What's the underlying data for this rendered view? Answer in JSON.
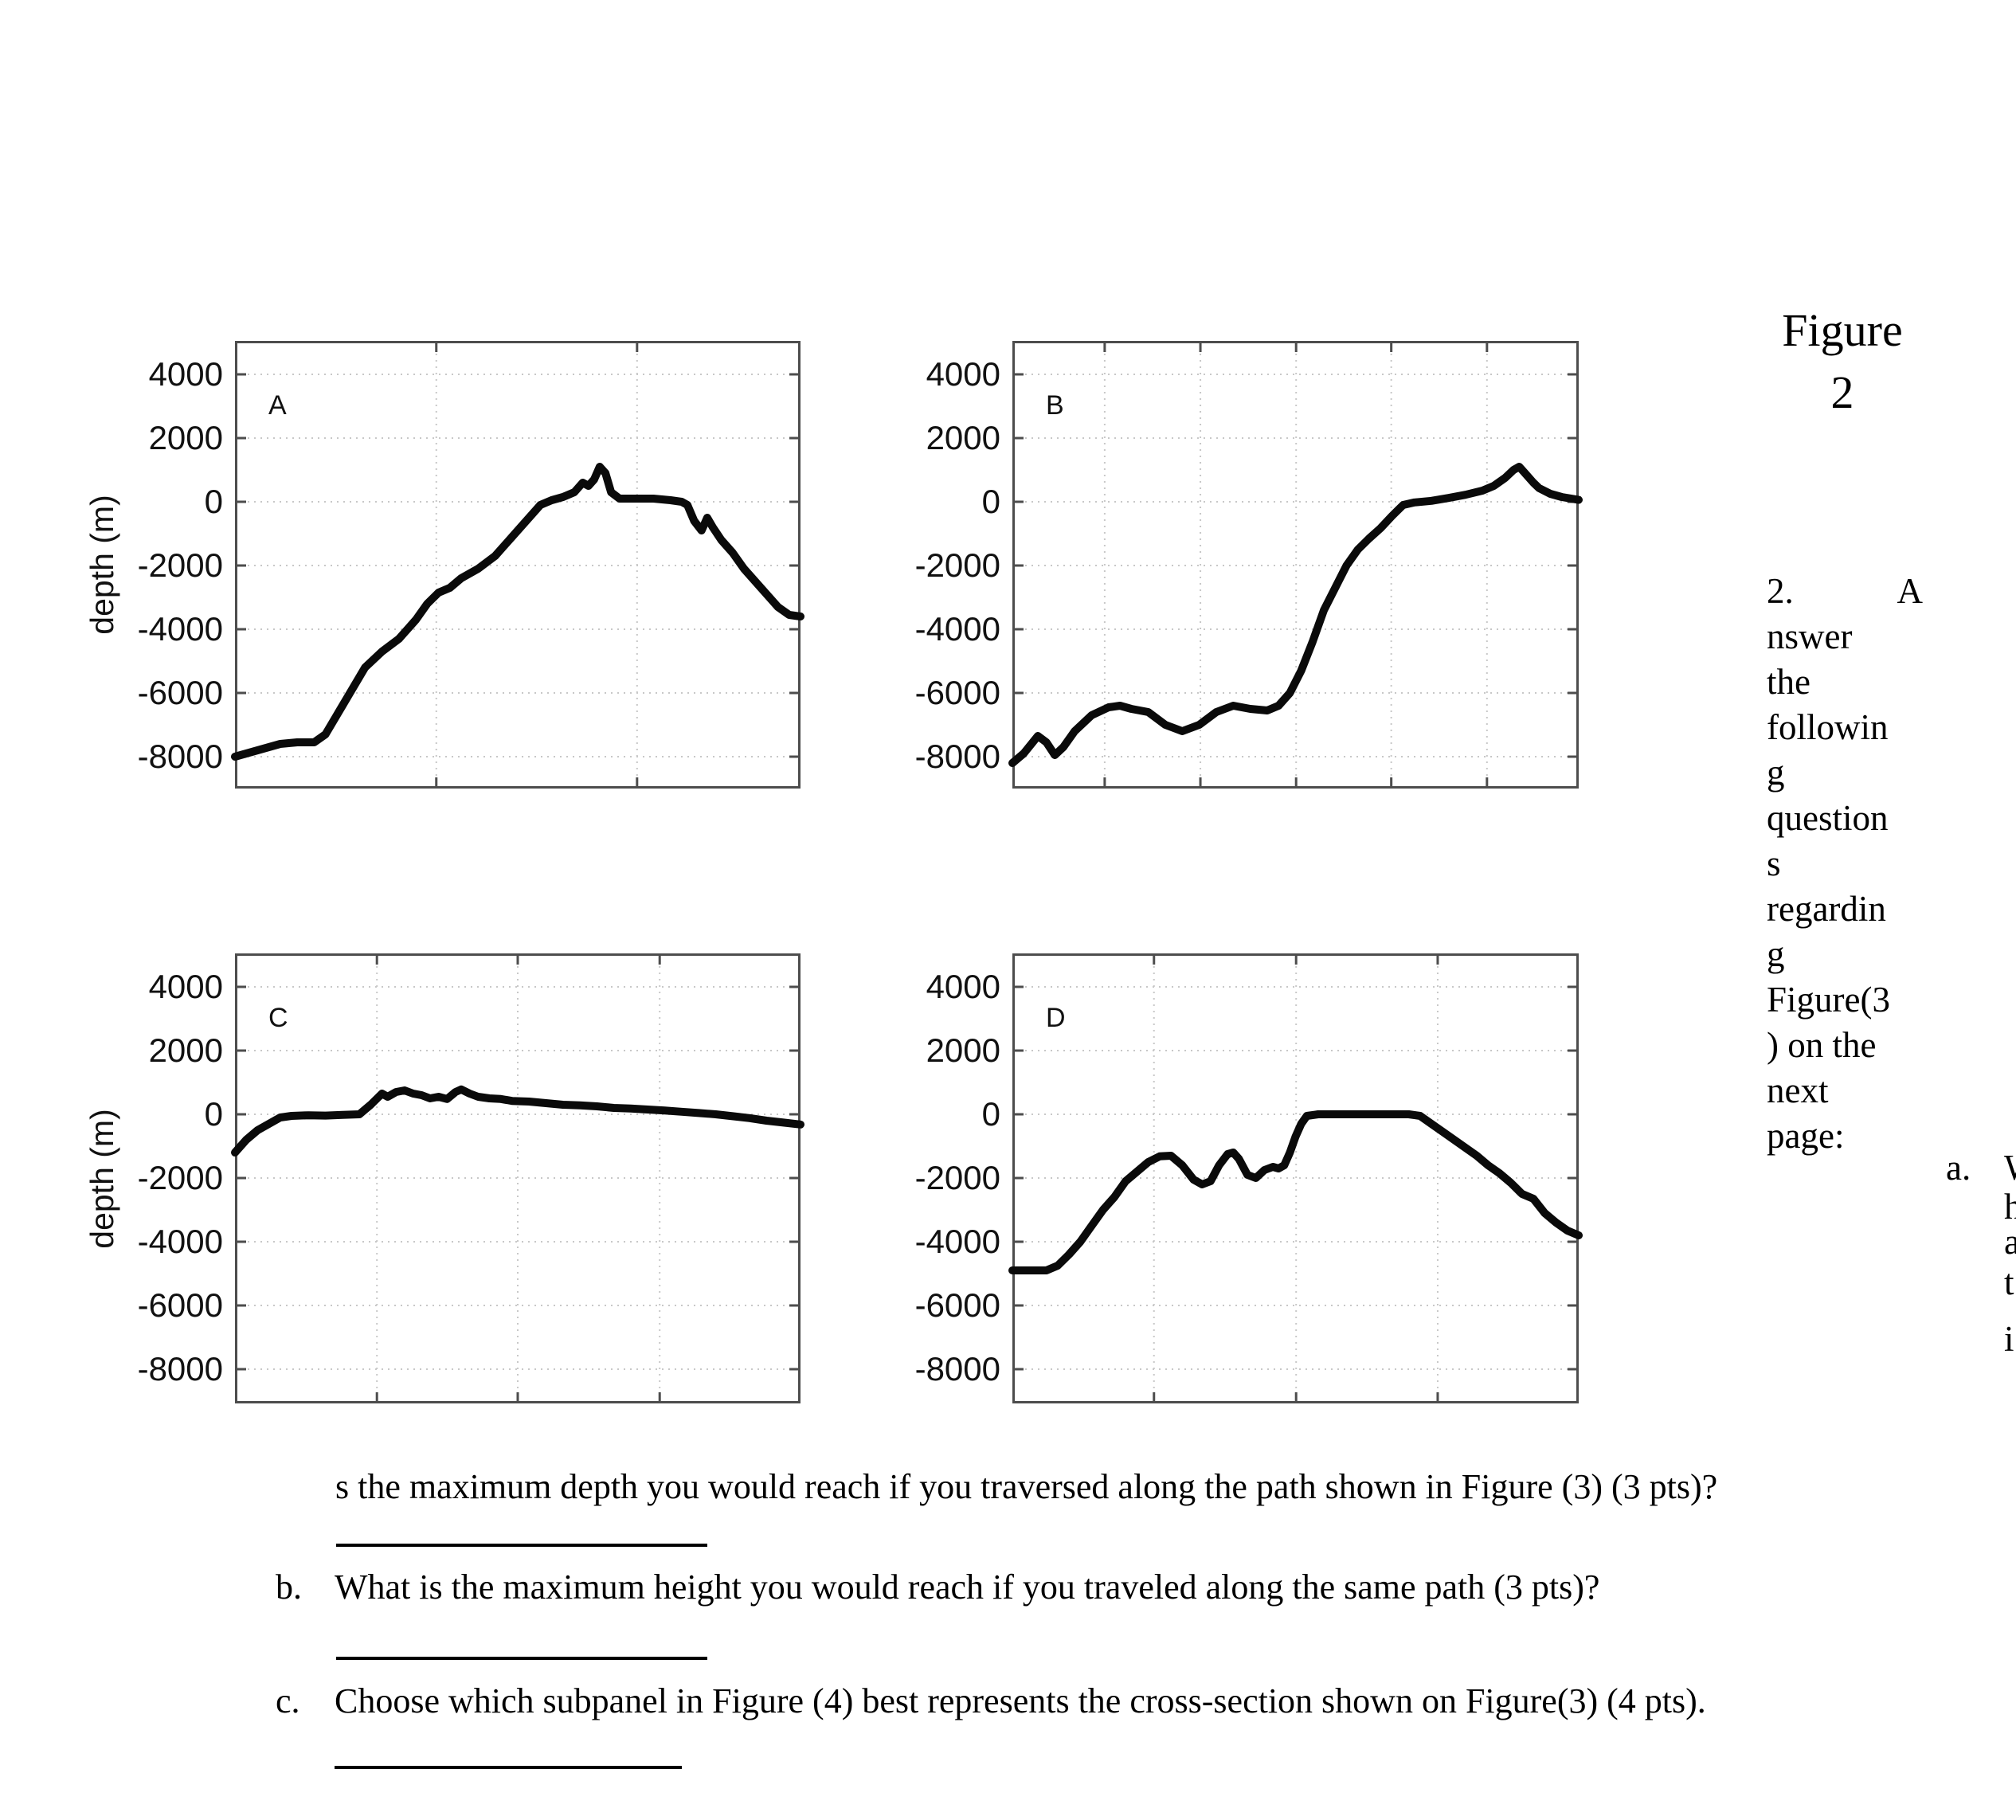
{
  "figure_caption": {
    "line1": "Figure",
    "line2": "2"
  },
  "note": {
    "number": "2.",
    "first_char": "A",
    "wrapped_lines": [
      "nswer",
      "the",
      "followin",
      "g",
      "question",
      "s",
      "regardin",
      "g",
      "Figure(3",
      ") on the",
      "next",
      "page:"
    ]
  },
  "question_a_marker": "a.",
  "clipped_fragments": [
    "W",
    "h",
    "a",
    "t",
    "i"
  ],
  "questions": {
    "a_continuation": "s the maximum depth you would reach if you traversed along the path shown in Figure (3) (3 pts)?",
    "b_marker": "b.",
    "b": "What is the maximum height you would reach if you traveled along the same path (3 pts)?",
    "c_marker": "c.",
    "c": "Choose which subpanel in Figure (4) best represents the cross-section shown on Figure(3) (4 pts)."
  },
  "colors": {
    "curve": "#0a0a0a",
    "axis": "#4d4d4d",
    "grid": "#c8c8c8",
    "text": "#000000"
  },
  "chart_data": [
    {
      "type": "line",
      "panel": "A",
      "label": "A",
      "ylabel": "depth (m)",
      "ylim": [
        -9000,
        5050
      ],
      "yticks": [
        4000,
        2000,
        0,
        -2000,
        -4000,
        -6000,
        -8000
      ],
      "x_gridlines": [
        0.356,
        0.711
      ],
      "x": [
        0,
        0.04,
        0.08,
        0.11,
        0.14,
        0.16,
        0.18,
        0.2,
        0.23,
        0.26,
        0.29,
        0.32,
        0.34,
        0.36,
        0.38,
        0.4,
        0.43,
        0.46,
        0.49,
        0.52,
        0.54,
        0.56,
        0.58,
        0.6,
        0.615,
        0.625,
        0.635,
        0.645,
        0.655,
        0.665,
        0.68,
        0.71,
        0.74,
        0.77,
        0.79,
        0.8,
        0.812,
        0.825,
        0.835,
        0.845,
        0.86,
        0.88,
        0.9,
        0.93,
        0.96,
        0.98,
        1.0
      ],
      "y": [
        -8000,
        -7800,
        -7600,
        -7550,
        -7550,
        -7300,
        -6700,
        -6100,
        -5200,
        -4700,
        -4300,
        -3700,
        -3200,
        -2850,
        -2700,
        -2400,
        -2100,
        -1700,
        -1100,
        -500,
        -100,
        50,
        150,
        300,
        600,
        500,
        700,
        1100,
        900,
        300,
        100,
        100,
        100,
        50,
        0,
        -100,
        -600,
        -900,
        -500,
        -800,
        -1200,
        -1600,
        -2100,
        -2700,
        -3300,
        -3550,
        -3600
      ]
    },
    {
      "type": "line",
      "panel": "B",
      "label": "B",
      "ylabel": "",
      "ylim": [
        -9000,
        5050
      ],
      "yticks": [
        4000,
        2000,
        0,
        -2000,
        -4000,
        -6000,
        -8000
      ],
      "x_gridlines": [
        0.163,
        0.332,
        0.501,
        0.669,
        0.838
      ],
      "x": [
        0,
        0.02,
        0.045,
        0.06,
        0.075,
        0.09,
        0.11,
        0.14,
        0.17,
        0.19,
        0.21,
        0.24,
        0.27,
        0.3,
        0.33,
        0.36,
        0.39,
        0.42,
        0.45,
        0.47,
        0.49,
        0.51,
        0.53,
        0.55,
        0.57,
        0.59,
        0.61,
        0.63,
        0.65,
        0.67,
        0.69,
        0.71,
        0.74,
        0.77,
        0.8,
        0.83,
        0.85,
        0.87,
        0.885,
        0.895,
        0.905,
        0.92,
        0.93,
        0.95,
        0.97,
        1.0
      ],
      "y": [
        -8200,
        -7900,
        -7350,
        -7550,
        -7950,
        -7700,
        -7200,
        -6700,
        -6450,
        -6400,
        -6500,
        -6600,
        -7000,
        -7200,
        -7000,
        -6600,
        -6400,
        -6500,
        -6550,
        -6400,
        -6000,
        -5300,
        -4400,
        -3400,
        -2700,
        -2000,
        -1500,
        -1150,
        -830,
        -450,
        -100,
        -20,
        30,
        120,
        220,
        350,
        500,
        750,
        1000,
        1100,
        900,
        600,
        430,
        250,
        150,
        60
      ]
    },
    {
      "type": "line",
      "panel": "C",
      "label": "C",
      "ylabel": "depth (m)",
      "ylim": [
        -9050,
        5050
      ],
      "yticks": [
        4000,
        2000,
        0,
        -2000,
        -4000,
        -6000,
        -8000
      ],
      "x_gridlines": [
        0.251,
        0.5,
        0.751
      ],
      "x": [
        0,
        0.02,
        0.04,
        0.06,
        0.08,
        0.1,
        0.13,
        0.16,
        0.19,
        0.22,
        0.24,
        0.26,
        0.27,
        0.285,
        0.3,
        0.315,
        0.33,
        0.345,
        0.36,
        0.375,
        0.39,
        0.4,
        0.415,
        0.43,
        0.45,
        0.47,
        0.49,
        0.52,
        0.55,
        0.58,
        0.61,
        0.64,
        0.67,
        0.7,
        0.73,
        0.76,
        0.79,
        0.82,
        0.85,
        0.88,
        0.91,
        0.94,
        0.97,
        1.0
      ],
      "y": [
        -1200,
        -800,
        -500,
        -300,
        -100,
        -50,
        -30,
        -40,
        -20,
        0,
        300,
        650,
        550,
        700,
        750,
        650,
        600,
        500,
        550,
        480,
        700,
        780,
        650,
        550,
        500,
        480,
        420,
        400,
        350,
        300,
        280,
        250,
        200,
        180,
        150,
        120,
        80,
        40,
        0,
        -60,
        -120,
        -200,
        -260,
        -320
      ]
    },
    {
      "type": "line",
      "panel": "D",
      "label": "D",
      "ylabel": "",
      "ylim": [
        -9050,
        5050
      ],
      "yticks": [
        4000,
        2000,
        0,
        -2000,
        -4000,
        -6000,
        -8000
      ],
      "x_gridlines": [
        0.25,
        0.501,
        0.751
      ],
      "x": [
        0,
        0.03,
        0.06,
        0.08,
        0.1,
        0.12,
        0.14,
        0.16,
        0.18,
        0.2,
        0.22,
        0.24,
        0.26,
        0.28,
        0.3,
        0.32,
        0.335,
        0.35,
        0.365,
        0.38,
        0.39,
        0.4,
        0.415,
        0.43,
        0.445,
        0.46,
        0.47,
        0.48,
        0.49,
        0.5,
        0.51,
        0.52,
        0.54,
        0.6,
        0.66,
        0.7,
        0.72,
        0.74,
        0.76,
        0.78,
        0.8,
        0.82,
        0.84,
        0.86,
        0.88,
        0.9,
        0.92,
        0.94,
        0.96,
        0.98,
        1.0
      ],
      "y": [
        -4900,
        -4900,
        -4900,
        -4750,
        -4400,
        -4000,
        -3500,
        -3000,
        -2600,
        -2100,
        -1800,
        -1500,
        -1320,
        -1300,
        -1600,
        -2050,
        -2200,
        -2100,
        -1600,
        -1250,
        -1200,
        -1400,
        -1900,
        -2000,
        -1750,
        -1650,
        -1700,
        -1600,
        -1200,
        -700,
        -300,
        -50,
        0,
        0,
        0,
        0,
        -50,
        -300,
        -550,
        -800,
        -1050,
        -1300,
        -1600,
        -1850,
        -2150,
        -2500,
        -2650,
        -3100,
        -3400,
        -3650,
        -3800
      ]
    }
  ]
}
